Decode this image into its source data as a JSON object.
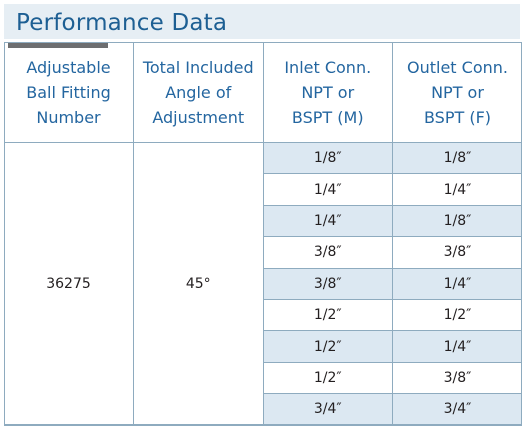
{
  "title": "Performance Data",
  "table": {
    "headers": [
      [
        "Adjustable",
        "Ball Fitting",
        "Number"
      ],
      [
        "Total Included",
        "Angle of",
        "Adjustment"
      ],
      [
        "Inlet Conn.",
        "NPT or",
        "BSPT (M)"
      ],
      [
        "Outlet Conn.",
        "NPT or",
        "BSPT (F)"
      ]
    ],
    "fitting_number": "36275",
    "angle": "45°",
    "rows": [
      [
        "1/8″",
        "1/8″"
      ],
      [
        "1/4″",
        "1/4″"
      ],
      [
        "1/4″",
        "1/8″"
      ],
      [
        "3/8″",
        "3/8″"
      ],
      [
        "3/8″",
        "1/4″"
      ],
      [
        "1/2″",
        "1/2″"
      ],
      [
        "1/2″",
        "1/4″"
      ],
      [
        "1/2″",
        "3/8″"
      ],
      [
        "3/4″",
        "3/4″"
      ]
    ]
  }
}
